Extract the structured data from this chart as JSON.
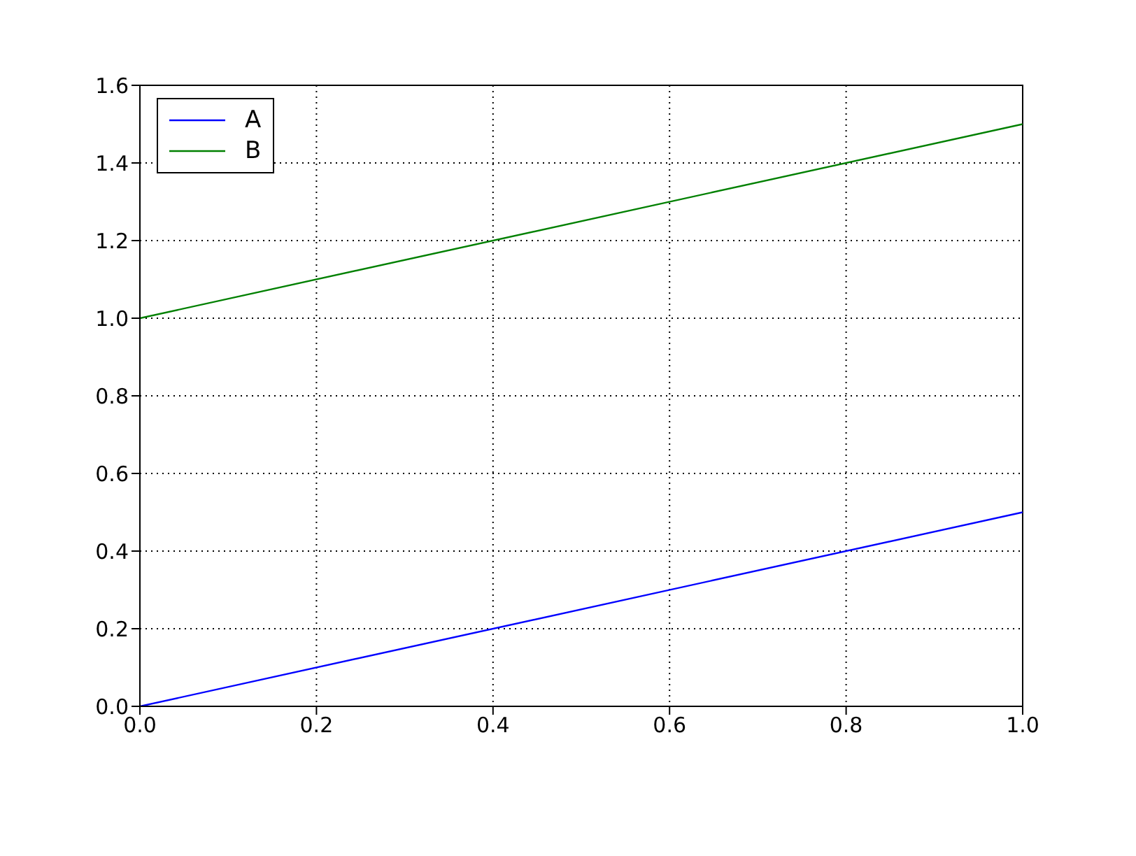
{
  "chart_data": {
    "type": "line",
    "x": [
      0,
      1
    ],
    "series": [
      {
        "name": "A",
        "color": "#0000ff",
        "values": [
          0,
          0.5
        ]
      },
      {
        "name": "B",
        "color": "#008000",
        "values": [
          1,
          1.5
        ]
      }
    ],
    "xlim": [
      0,
      1
    ],
    "ylim": [
      0,
      1.6
    ],
    "xticks": [
      {
        "value": 0,
        "label": "0.0"
      },
      {
        "value": 0.2,
        "label": "0.2"
      },
      {
        "value": 0.4,
        "label": "0.4"
      },
      {
        "value": 0.6,
        "label": "0.6"
      },
      {
        "value": 0.8,
        "label": "0.8"
      },
      {
        "value": 1,
        "label": "1.0"
      }
    ],
    "yticks": [
      {
        "value": 0,
        "label": "0.0"
      },
      {
        "value": 0.2,
        "label": "0.2"
      },
      {
        "value": 0.4,
        "label": "0.4"
      },
      {
        "value": 0.6,
        "label": "0.6"
      },
      {
        "value": 0.8,
        "label": "0.8"
      },
      {
        "value": 1,
        "label": "1.0"
      },
      {
        "value": 1.2,
        "label": "1.2"
      },
      {
        "value": 1.4,
        "label": "1.4"
      },
      {
        "value": 1.6,
        "label": "1.6"
      }
    ],
    "grid": true,
    "legend": "top left",
    "marker": "none",
    "line_style": "solid"
  }
}
